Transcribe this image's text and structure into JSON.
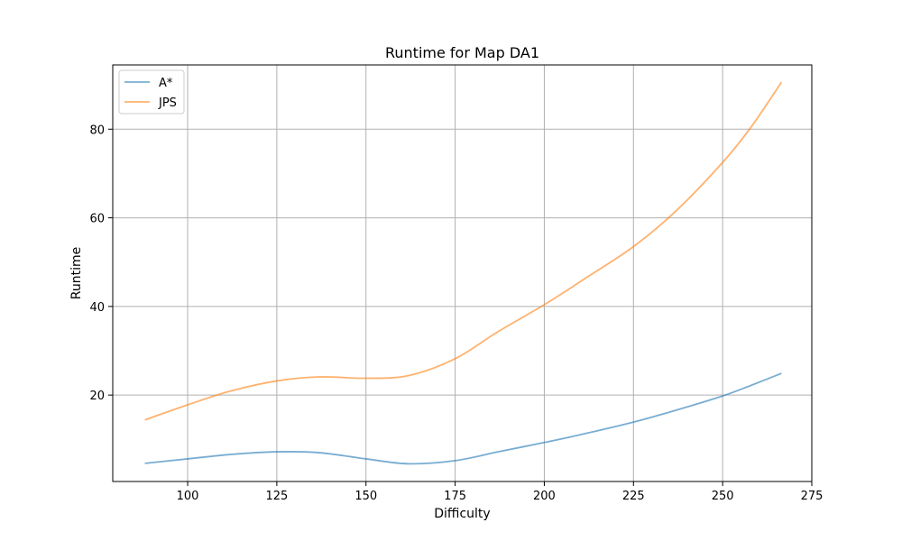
{
  "chart_data": {
    "type": "line",
    "title": "Runtime for Map DA1",
    "xlabel": "Difficulty",
    "ylabel": "Runtime",
    "xlim": [
      79,
      275
    ],
    "ylim": [
      0.5,
      94.5
    ],
    "xticks": [
      100,
      125,
      150,
      175,
      200,
      225,
      250,
      275
    ],
    "yticks": [
      20,
      40,
      60,
      80
    ],
    "grid": true,
    "legend_position": "upper-left",
    "series": [
      {
        "name": "A*",
        "color": "#1f77b4",
        "x": [
          88,
          100,
          112,
          125,
          137,
          150,
          162,
          175,
          187,
          200,
          212,
          225,
          237,
          250,
          258,
          266.5
        ],
        "y": [
          4.6,
          5.6,
          6.6,
          7.2,
          7.0,
          5.6,
          4.5,
          5.2,
          7.2,
          9.3,
          11.4,
          13.9,
          16.6,
          19.8,
          22.2,
          24.9
        ]
      },
      {
        "name": "JPS",
        "color": "#ff7f0e",
        "x": [
          88,
          100,
          112,
          125,
          137,
          150,
          162,
          175,
          187,
          200,
          212,
          225,
          237,
          250,
          258,
          266.5
        ],
        "y": [
          14.4,
          17.8,
          20.9,
          23.2,
          24.1,
          23.8,
          24.4,
          28.2,
          34.3,
          40.4,
          46.6,
          53.5,
          61.6,
          72.5,
          80.5,
          90.6
        ]
      }
    ]
  }
}
